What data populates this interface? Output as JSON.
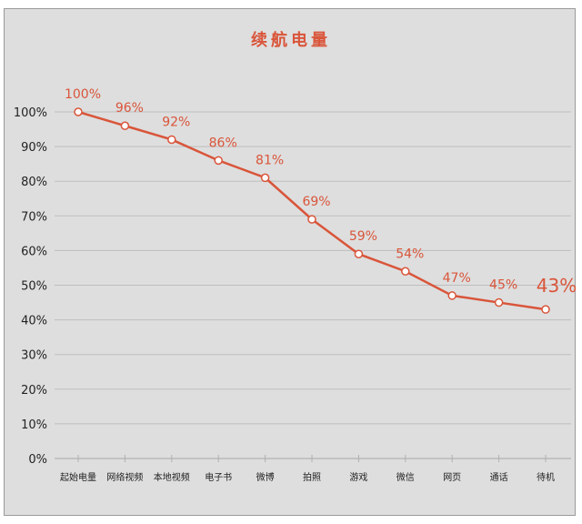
{
  "chart_data": {
    "type": "line",
    "title": "续航电量",
    "categories": [
      "起始电量",
      "网络视频",
      "本地视频",
      "电子书",
      "微博",
      "拍照",
      "游戏",
      "微信",
      "网页",
      "通话",
      "待机"
    ],
    "series": [
      {
        "values": [
          100,
          96,
          92,
          86,
          81,
          69,
          59,
          54,
          47,
          45,
          43
        ]
      }
    ],
    "data_labels": [
      "100%",
      "96%",
      "92%",
      "86%",
      "81%",
      "69%",
      "59%",
      "54%",
      "47%",
      "45%",
      "43%"
    ],
    "yticks": [
      "0%",
      "10%",
      "20%",
      "30%",
      "40%",
      "50%",
      "60%",
      "70%",
      "80%",
      "90%",
      "100%"
    ],
    "ylim": [
      0,
      100
    ],
    "grid": true,
    "xlabel": "",
    "ylabel": "",
    "colors": {
      "line": "#d9553a",
      "title": "#d9553a",
      "background": "#dedede",
      "grid": "#bdbdbd"
    }
  }
}
